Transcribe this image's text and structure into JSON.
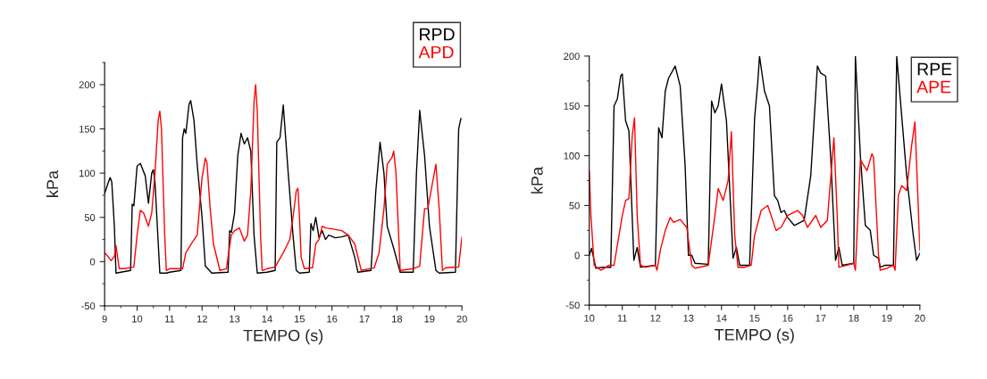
{
  "chart_data": [
    {
      "type": "line",
      "xlabel": "TEMPO (s)",
      "ylabel": "kPa",
      "xlim": [
        9,
        20
      ],
      "xticks": [
        9,
        10,
        11,
        12,
        13,
        14,
        15,
        16,
        17,
        18,
        19,
        20
      ],
      "ylim": [
        -50,
        225
      ],
      "yticks": [
        -50,
        0,
        50,
        100,
        150,
        200
      ],
      "legend": "top right",
      "grid": false,
      "marker": "none",
      "line_style": "solid",
      "series": [
        {
          "name": "RPD",
          "color": "#000000",
          "x": [
            9.0,
            9.1,
            9.17,
            9.22,
            9.3,
            9.35,
            9.5,
            9.8,
            9.85,
            9.9,
            10.0,
            10.1,
            10.25,
            10.35,
            10.45,
            10.5,
            10.55,
            10.7,
            10.9,
            11.0,
            11.35,
            11.4,
            11.45,
            11.5,
            11.6,
            11.65,
            11.75,
            11.85,
            12.0,
            12.1,
            12.3,
            12.8,
            12.85,
            12.9,
            13.0,
            13.1,
            13.2,
            13.3,
            13.4,
            13.5,
            13.6,
            13.7,
            14.0,
            14.25,
            14.3,
            14.4,
            14.5,
            14.65,
            14.8,
            14.9,
            15.0,
            15.3,
            15.35,
            15.42,
            15.5,
            15.6,
            15.7,
            15.8,
            15.9,
            16.1,
            16.3,
            16.5,
            16.7,
            16.8,
            17.2,
            17.35,
            17.48,
            17.6,
            17.7,
            17.9,
            18.1,
            18.5,
            18.6,
            18.7,
            18.85,
            19.0,
            19.2,
            19.3,
            19.8,
            19.9,
            19.97
          ],
          "values": [
            77,
            88,
            95,
            90,
            40,
            -13,
            -12,
            -10,
            65,
            63,
            108,
            111,
            97,
            66,
            100,
            104,
            90,
            -13,
            -13,
            -12,
            -10,
            140,
            150,
            145,
            178,
            182,
            160,
            110,
            50,
            -5,
            -13,
            -12,
            35,
            33,
            55,
            120,
            145,
            133,
            140,
            125,
            30,
            -13,
            -12,
            -10,
            135,
            140,
            177,
            101,
            30,
            -10,
            -13,
            -12,
            43,
            35,
            50,
            27,
            35,
            25,
            30,
            27,
            28,
            30,
            5,
            -12,
            -10,
            80,
            135,
            100,
            40,
            15,
            -12,
            -12,
            100,
            171,
            120,
            40,
            -10,
            -13,
            -12,
            150,
            162
          ]
        },
        {
          "name": "APD",
          "color": "#ff0000",
          "x": [
            9.0,
            9.1,
            9.2,
            9.3,
            9.35,
            9.45,
            9.6,
            9.9,
            10.0,
            10.1,
            10.2,
            10.35,
            10.45,
            10.55,
            10.65,
            10.7,
            10.75,
            10.85,
            10.9,
            11.0,
            11.4,
            11.5,
            11.7,
            11.85,
            12.0,
            12.1,
            12.15,
            12.25,
            12.35,
            12.55,
            12.75,
            12.8,
            12.9,
            13.0,
            13.15,
            13.3,
            13.4,
            13.5,
            13.6,
            13.65,
            13.7,
            13.8,
            13.85,
            14.0,
            14.25,
            14.5,
            14.7,
            14.8,
            14.9,
            14.95,
            15.0,
            15.05,
            15.15,
            15.4,
            15.5,
            15.6,
            15.7,
            15.8,
            16.0,
            16.3,
            16.5,
            16.7,
            16.9,
            17.3,
            17.45,
            17.6,
            17.7,
            17.85,
            17.9,
            17.97,
            18.1,
            18.5,
            18.7,
            18.85,
            18.95,
            19.05,
            19.2,
            19.3,
            19.4,
            19.5,
            19.9,
            20.0
          ],
          "values": [
            10,
            6,
            1,
            6,
            18,
            -8,
            -8,
            -6,
            30,
            58,
            55,
            40,
            55,
            100,
            160,
            170,
            150,
            30,
            -10,
            -8,
            -8,
            10,
            22,
            30,
            95,
            117,
            112,
            60,
            20,
            -10,
            -8,
            5,
            30,
            35,
            38,
            23,
            30,
            80,
            180,
            200,
            170,
            30,
            -10,
            -8,
            -6,
            10,
            25,
            50,
            80,
            83,
            50,
            5,
            -8,
            -7,
            20,
            25,
            40,
            38,
            37,
            35,
            30,
            20,
            -10,
            -7,
            10,
            60,
            110,
            118,
            125,
            100,
            -10,
            -8,
            -5,
            60,
            60,
            80,
            110,
            60,
            -10,
            -7,
            -6,
            28
          ]
        }
      ]
    },
    {
      "type": "line",
      "xlabel": "TEMPO (s)",
      "ylabel": "kPa",
      "xlim": [
        10,
        20
      ],
      "xticks": [
        10,
        11,
        12,
        13,
        14,
        15,
        16,
        17,
        18,
        19,
        20
      ],
      "ylim": [
        -50,
        200
      ],
      "yticks": [
        -50,
        0,
        50,
        100,
        150,
        200
      ],
      "legend": "top right",
      "grid": false,
      "marker": "none",
      "line_style": "solid",
      "series": [
        {
          "name": "RPE",
          "color": "#000000",
          "x": [
            10.0,
            10.07,
            10.2,
            10.4,
            10.65,
            10.75,
            10.85,
            10.95,
            11.0,
            11.1,
            11.2,
            11.35,
            11.45,
            11.55,
            12.0,
            12.1,
            12.2,
            12.3,
            12.4,
            12.6,
            12.75,
            12.9,
            13.0,
            13.1,
            13.2,
            13.6,
            13.7,
            13.8,
            13.9,
            14.0,
            14.15,
            14.35,
            14.45,
            14.55,
            14.85,
            15.0,
            15.1,
            15.15,
            15.3,
            15.45,
            15.6,
            15.7,
            15.8,
            15.9,
            16.0,
            16.2,
            16.5,
            16.7,
            16.9,
            17.0,
            17.15,
            17.3,
            17.45,
            17.55,
            17.65,
            18.0,
            18.05,
            18.2,
            18.35,
            18.5,
            18.6,
            18.75,
            18.8,
            18.95,
            19.2,
            19.3,
            19.4,
            19.6,
            19.8,
            19.9,
            20.0
          ],
          "values": [
            0,
            7,
            -13,
            -12,
            -12,
            150,
            157,
            180,
            182,
            135,
            125,
            -5,
            8,
            -12,
            -10,
            128,
            118,
            165,
            178,
            190,
            170,
            90,
            0,
            0,
            -8,
            -9,
            155,
            143,
            150,
            172,
            135,
            -3,
            8,
            -10,
            -10,
            137,
            175,
            200,
            165,
            150,
            60,
            55,
            43,
            45,
            38,
            30,
            35,
            80,
            190,
            183,
            180,
            100,
            -5,
            8,
            -10,
            -8,
            200,
            100,
            30,
            25,
            0,
            -3,
            -12,
            -10,
            -10,
            200,
            160,
            80,
            20,
            -5,
            2
          ]
        },
        {
          "name": "APE",
          "color": "#ff0000",
          "x": [
            10.0,
            10.05,
            10.15,
            10.35,
            10.6,
            10.75,
            10.9,
            11.0,
            11.1,
            11.2,
            11.3,
            11.37,
            11.45,
            11.55,
            11.7,
            12.0,
            12.05,
            12.15,
            12.3,
            12.45,
            12.55,
            12.75,
            12.95,
            13.1,
            13.2,
            13.6,
            13.8,
            13.9,
            14.05,
            14.2,
            14.3,
            14.4,
            14.5,
            14.7,
            14.9,
            15.0,
            15.2,
            15.4,
            15.5,
            15.65,
            15.8,
            16.0,
            16.3,
            16.45,
            16.6,
            16.85,
            17.0,
            17.2,
            17.4,
            17.5,
            17.55,
            17.8,
            18.0,
            18.05,
            18.2,
            18.4,
            18.55,
            18.6,
            18.75,
            18.8,
            19.0,
            19.2,
            19.25,
            19.35,
            19.45,
            19.6,
            19.75,
            19.85,
            19.95,
            20.0
          ],
          "values": [
            85,
            40,
            -10,
            -15,
            -10,
            -10,
            20,
            40,
            55,
            57,
            120,
            138,
            40,
            -10,
            -12,
            -10,
            -15,
            5,
            25,
            38,
            33,
            36,
            28,
            -10,
            -13,
            -10,
            40,
            67,
            55,
            75,
            124,
            20,
            -12,
            -12,
            -10,
            20,
            45,
            50,
            40,
            25,
            28,
            40,
            45,
            40,
            28,
            40,
            28,
            35,
            118,
            40,
            -12,
            -10,
            -8,
            -15,
            96,
            85,
            102,
            98,
            0,
            -15,
            -13,
            -10,
            -15,
            60,
            70,
            65,
            110,
            134,
            50,
            5
          ]
        }
      ]
    }
  ]
}
